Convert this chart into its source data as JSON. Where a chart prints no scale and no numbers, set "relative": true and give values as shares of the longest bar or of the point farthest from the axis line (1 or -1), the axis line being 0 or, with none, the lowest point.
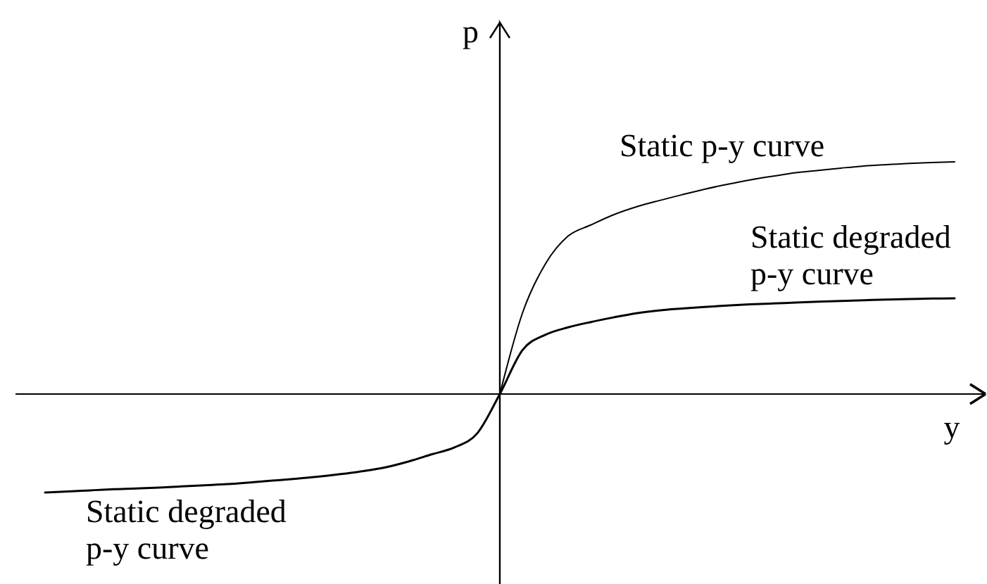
{
  "chart_data": {
    "type": "line",
    "xlabel": "y",
    "ylabel": "p",
    "relative": true,
    "categories": [
      null,
      null,
      null,
      null,
      null,
      null,
      null,
      null,
      null,
      null,
      null,
      null,
      null,
      null,
      null,
      null,
      null,
      null,
      null,
      null,
      null,
      null,
      null,
      null,
      null,
      null,
      null,
      null,
      null,
      null,
      null,
      null,
      null,
      null,
      null,
      null,
      null,
      null,
      null,
      null,
      null
    ],
    "series": [
      {
        "name": "Static p-y curve",
        "color": "#000000",
        "values": [
          null,
          null,
          null,
          null,
          null,
          null,
          null,
          null,
          null,
          null,
          null,
          null,
          null,
          null,
          null,
          null,
          null,
          null,
          null,
          null,
          0,
          0.35,
          0.56,
          0.68,
          0.728,
          0.772,
          0.806,
          0.833,
          0.858,
          0.882,
          0.903,
          0.922,
          0.938,
          0.953,
          0.963,
          0.973,
          0.982,
          0.988,
          0.993,
          0.997,
          1.0
        ]
      },
      {
        "name": "Static degraded p-y curve",
        "color": "#000000",
        "values": [
          -0.424,
          -0.42,
          -0.415,
          -0.41,
          -0.407,
          -0.403,
          -0.398,
          -0.393,
          -0.388,
          -0.381,
          -0.373,
          -0.365,
          -0.356,
          -0.345,
          -0.332,
          -0.315,
          -0.29,
          -0.26,
          -0.23,
          -0.17,
          0,
          0.19,
          0.255,
          0.287,
          0.31,
          0.33,
          0.348,
          0.36,
          0.368,
          0.375,
          0.381,
          0.386,
          0.39,
          0.394,
          0.398,
          0.401,
          0.404,
          0.407,
          0.409,
          0.411,
          0.412
        ]
      }
    ]
  }
}
